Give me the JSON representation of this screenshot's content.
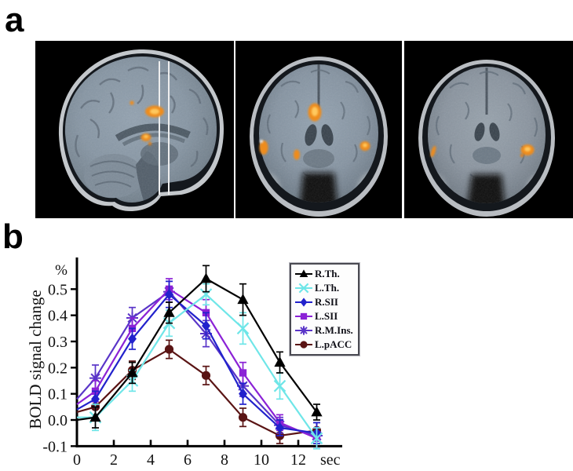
{
  "figure": {
    "panel_a_label": "a",
    "panel_b_label": "b"
  },
  "panel_a": {
    "slices": [
      {
        "name": "sagittal-slice",
        "slice_lines": 2
      },
      {
        "name": "coronal-slice-anterior"
      },
      {
        "name": "coronal-slice-posterior"
      }
    ],
    "activation_color": "#F29324"
  },
  "chart_data": {
    "type": "line",
    "title": "",
    "xlabel": "",
    "ylabel": "BOLD signal change",
    "y_unit_label": "%",
    "x_unit_label": "sec",
    "x": [
      0,
      1,
      3,
      5,
      7,
      9,
      11,
      13
    ],
    "xticks": [
      0,
      2,
      4,
      6,
      8,
      10,
      12
    ],
    "yticks": [
      0.5,
      0.4,
      0.3,
      0.2,
      0.1,
      0.0,
      -0.1
    ],
    "xlim": [
      0,
      14
    ],
    "ylim": [
      -0.1,
      0.58
    ],
    "grid": false,
    "legend_position": "upper right",
    "markers_from_index": 1,
    "series": [
      {
        "name": "R.Th.",
        "marker": "triangle",
        "color": "#000000",
        "values": [
          0.0,
          0.01,
          0.18,
          0.41,
          0.54,
          0.46,
          0.22,
          0.03
        ],
        "errors": [
          0,
          0.04,
          0.04,
          0.04,
          0.05,
          0.06,
          0.04,
          0.03
        ]
      },
      {
        "name": "L.Th.",
        "marker": "x",
        "color": "#6FE6E8",
        "values": [
          0.01,
          0.01,
          0.15,
          0.37,
          0.48,
          0.35,
          0.13,
          -0.07
        ],
        "errors": [
          0,
          0.05,
          0.04,
          0.05,
          0.04,
          0.06,
          0.05,
          0.04
        ]
      },
      {
        "name": "R.SII",
        "marker": "diamond",
        "color": "#2222CC",
        "values": [
          0.04,
          0.08,
          0.31,
          0.48,
          0.36,
          0.1,
          -0.03,
          -0.05
        ],
        "errors": [
          0,
          0.03,
          0.04,
          0.05,
          0.05,
          0.04,
          0.03,
          0.04
        ]
      },
      {
        "name": "L.SII",
        "marker": "square",
        "color": "#8B22D6",
        "values": [
          0.06,
          0.11,
          0.35,
          0.5,
          0.41,
          0.18,
          -0.01,
          -0.07
        ],
        "errors": [
          0,
          0.04,
          0.04,
          0.04,
          0.05,
          0.04,
          0.03,
          0.04
        ]
      },
      {
        "name": "R.M.Ins.",
        "marker": "asterisk",
        "color": "#5A35C8",
        "values": [
          0.08,
          0.16,
          0.39,
          0.49,
          0.33,
          0.13,
          -0.02,
          -0.06
        ],
        "errors": [
          0,
          0.05,
          0.04,
          0.04,
          0.05,
          0.04,
          0.03,
          0.05
        ]
      },
      {
        "name": "L.pACC",
        "marker": "circle",
        "color": "#5A1414",
        "values": [
          0.03,
          0.05,
          0.19,
          0.27,
          0.17,
          0.01,
          -0.06,
          -0.04
        ],
        "errors": [
          0,
          0.03,
          0.035,
          0.035,
          0.035,
          0.035,
          0.03,
          0.03
        ]
      }
    ]
  }
}
